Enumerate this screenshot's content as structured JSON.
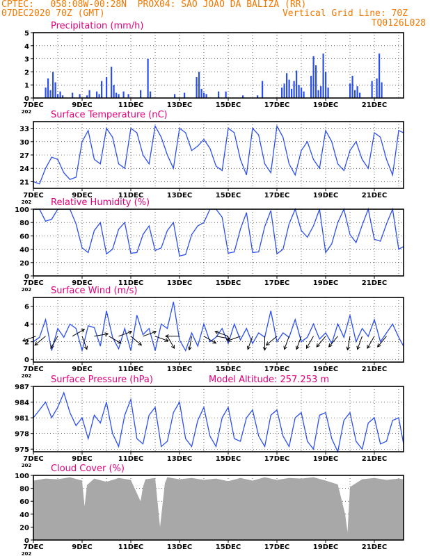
{
  "header": {
    "line1": "CPTEC:   058:08W-00:28N  PROX04: SAO JOAO DA BALIZA (RR)",
    "line2_left": "07DEC2020 70Z (GMT)",
    "line2_right": "Vertical Grid Line: 70Z",
    "line3_right": "TQ0126L028"
  },
  "colors": {
    "header": "#f07800",
    "title": "#e0007a",
    "line": "#2a4ef0",
    "cloud": "#a8a8a8"
  },
  "x_labels": [
    "7DEC",
    "9DEC",
    "11DEC",
    "13DEC",
    "15DEC",
    "17DEC",
    "19DEC",
    "21DEC"
  ],
  "x_label_fragment": "202",
  "chart_data": [
    {
      "type": "bar",
      "title": "Precipitation (mm/h)",
      "ylim": [
        0,
        5
      ],
      "yticks": [
        "0",
        "1",
        "2",
        "3",
        "4",
        "5"
      ],
      "x_range_days": [
        7,
        22.2
      ],
      "x": [
        7.5,
        7.6,
        7.7,
        7.8,
        7.9,
        8.0,
        8.1,
        8.2,
        8.6,
        8.9,
        9.2,
        9.3,
        9.6,
        9.7,
        9.8,
        10.0,
        10.2,
        10.3,
        10.4,
        10.5,
        10.7,
        10.9,
        11.4,
        11.7,
        11.8,
        12.8,
        13.2,
        13.7,
        13.8,
        13.9,
        14.0,
        14.1,
        14.6,
        14.9,
        15.6,
        16.2,
        16.4,
        17.2,
        17.3,
        17.4,
        17.5,
        17.6,
        17.7,
        17.8,
        17.9,
        18.0,
        18.1,
        18.4,
        18.5,
        18.6,
        18.7,
        18.8,
        18.9,
        19.0,
        19.1,
        20.0,
        20.1,
        20.2,
        20.3,
        20.4,
        20.9,
        21.1,
        21.2,
        21.3
      ],
      "values": [
        0.8,
        1.5,
        0.6,
        2.0,
        1.2,
        0.3,
        0.5,
        0.2,
        0.4,
        0.3,
        0.2,
        0.6,
        0.5,
        0.3,
        1.3,
        1.6,
        2.4,
        1.0,
        0.4,
        0.3,
        0.5,
        0.3,
        0.6,
        3.0,
        0.5,
        0.3,
        0.4,
        1.6,
        2.0,
        0.7,
        0.4,
        0.3,
        0.5,
        0.5,
        0.2,
        0.2,
        1.3,
        0.8,
        1.1,
        1.9,
        1.4,
        0.7,
        1.3,
        2.1,
        1.0,
        0.8,
        0.5,
        1.7,
        3.2,
        2.5,
        0.6,
        0.9,
        3.4,
        2.0,
        0.8,
        1.1,
        1.7,
        0.6,
        0.9,
        0.4,
        1.3,
        1.5,
        3.4,
        1.2
      ]
    },
    {
      "type": "line",
      "title": "Surface Temperature (nC)",
      "ylim": [
        19.5,
        34.5
      ],
      "yticks": [
        "21",
        "24",
        "27",
        "30",
        "33"
      ],
      "x_range_days": [
        7,
        22.2
      ],
      "x": [
        7.0,
        7.25,
        7.5,
        7.75,
        8.0,
        8.25,
        8.5,
        8.75,
        9.0,
        9.25,
        9.5,
        9.75,
        10.0,
        10.25,
        10.5,
        10.75,
        11.0,
        11.25,
        11.5,
        11.75,
        12.0,
        12.25,
        12.5,
        12.75,
        13.0,
        13.25,
        13.5,
        13.75,
        14.0,
        14.25,
        14.5,
        14.75,
        15.0,
        15.25,
        15.5,
        15.75,
        16.0,
        16.25,
        16.5,
        16.75,
        17.0,
        17.25,
        17.5,
        17.75,
        18.0,
        18.25,
        18.5,
        18.75,
        19.0,
        19.25,
        19.5,
        19.75,
        20.0,
        20.25,
        20.5,
        20.75,
        21.0,
        21.25,
        21.5,
        21.75,
        22.0,
        22.2
      ],
      "values": [
        21,
        20.5,
        24,
        26.5,
        26,
        23,
        21.5,
        22,
        30,
        32.5,
        26,
        25,
        33,
        31,
        25,
        24,
        33,
        32,
        27,
        25,
        33.5,
        31,
        27,
        24,
        33,
        32,
        28,
        29,
        30.5,
        28.5,
        24.5,
        23.5,
        33,
        32,
        26,
        22.5,
        33,
        31.5,
        25,
        23,
        33.5,
        31,
        25,
        22.5,
        28,
        30,
        26,
        24,
        32.5,
        30,
        25,
        23.5,
        28,
        30,
        26,
        24,
        32,
        31,
        26,
        22.5,
        32.5,
        32
      ]
    },
    {
      "type": "line",
      "title": "Relative Humidity (%)",
      "ylim": [
        0,
        100
      ],
      "yticks": [
        "0",
        "20",
        "40",
        "60",
        "80",
        "100"
      ],
      "x_range_days": [
        7,
        22.2
      ],
      "x": [
        7.0,
        7.25,
        7.5,
        7.75,
        8.0,
        8.25,
        8.5,
        8.75,
        9.0,
        9.25,
        9.5,
        9.75,
        10.0,
        10.25,
        10.5,
        10.75,
        11.0,
        11.25,
        11.5,
        11.75,
        12.0,
        12.25,
        12.5,
        12.75,
        13.0,
        13.25,
        13.5,
        13.75,
        14.0,
        14.25,
        14.5,
        14.75,
        15.0,
        15.25,
        15.5,
        15.75,
        16.0,
        16.25,
        16.5,
        16.75,
        17.0,
        17.25,
        17.5,
        17.75,
        18.0,
        18.25,
        18.5,
        18.75,
        19.0,
        19.25,
        19.5,
        19.75,
        20.0,
        20.25,
        20.5,
        20.75,
        21.0,
        21.25,
        21.5,
        21.75,
        22.0,
        22.2
      ],
      "values": [
        100,
        100,
        82,
        85,
        100,
        100,
        100,
        78,
        42,
        35,
        68,
        80,
        33,
        40,
        70,
        80,
        34,
        35,
        62,
        75,
        38,
        42,
        68,
        80,
        30,
        32,
        62,
        75,
        80,
        100,
        100,
        88,
        34,
        36,
        70,
        95,
        35,
        36,
        74,
        98,
        33,
        40,
        78,
        100,
        68,
        58,
        75,
        100,
        35,
        48,
        80,
        100,
        62,
        50,
        76,
        100,
        55,
        52,
        78,
        100,
        40,
        44
      ]
    },
    {
      "type": "line",
      "title": "Surface Wind (m/s)",
      "ylim": [
        -0.3,
        7
      ],
      "yticks": [
        "0",
        "2",
        "4",
        "6"
      ],
      "x_range_days": [
        7,
        22.2
      ],
      "x": [
        7.0,
        7.25,
        7.5,
        7.75,
        8.0,
        8.25,
        8.5,
        8.75,
        9.0,
        9.25,
        9.5,
        9.75,
        10.0,
        10.25,
        10.5,
        10.75,
        11.0,
        11.25,
        11.5,
        11.75,
        12.0,
        12.25,
        12.5,
        12.75,
        13.0,
        13.25,
        13.5,
        13.75,
        14.0,
        14.25,
        14.5,
        14.75,
        15.0,
        15.25,
        15.5,
        15.75,
        16.0,
        16.25,
        16.5,
        16.75,
        17.0,
        17.25,
        17.5,
        17.75,
        18.0,
        18.25,
        18.5,
        18.75,
        19.0,
        19.25,
        19.5,
        19.75,
        20.0,
        20.25,
        20.5,
        20.75,
        21.0,
        21.25,
        21.5,
        21.75,
        22.0,
        22.2
      ],
      "values": [
        2,
        2.5,
        4.5,
        1,
        3.5,
        2.5,
        4,
        3.5,
        1,
        3.8,
        3.6,
        1.5,
        5.5,
        2.5,
        1.2,
        3.5,
        1.0,
        5.0,
        2.8,
        3.5,
        1.0,
        4.0,
        3.5,
        6.5,
        2.2,
        1.0,
        3.0,
        1.5,
        4.0,
        2.0,
        2.5,
        3.5,
        1.8,
        4.0,
        2.2,
        3.5,
        1.8,
        3.0,
        2.5,
        5.5,
        2.0,
        3.0,
        2.5,
        4.5,
        2.0,
        2.5,
        4.0,
        2.3,
        3.0,
        1.8,
        4.0,
        2.5,
        5.0,
        2.0,
        3.5,
        2.6,
        4.5,
        2.0,
        3.0,
        4.0,
        2.5,
        1.5
      ],
      "arrow_days": [
        7.1,
        7.5,
        8.0,
        8.6,
        9.0,
        9.5,
        10.1,
        10.5,
        11.0,
        11.5,
        12.0,
        12.5,
        13.0,
        13.5,
        14.0,
        14.5,
        15.0,
        15.5,
        16.0,
        16.5,
        17.0,
        17.5,
        18.0,
        18.5,
        19.0,
        19.5,
        20.0,
        20.5,
        21.0,
        21.5
      ],
      "arrow_dirs_deg": [
        200,
        220,
        240,
        30,
        290,
        10,
        330,
        20,
        320,
        20,
        340,
        300,
        180,
        260,
        330,
        350,
        160,
        200,
        250,
        270,
        220,
        250,
        250,
        240,
        230,
        230,
        260,
        250,
        240,
        230
      ]
    },
    {
      "type": "line",
      "title": "Surface Pressure (hPa)",
      "annotation": "Model Altitude: 257.253 m",
      "ylim": [
        974.5,
        987
      ],
      "yticks": [
        "975",
        "978",
        "981",
        "984",
        "987"
      ],
      "x_range_days": [
        7,
        22.2
      ],
      "x": [
        7.0,
        7.25,
        7.5,
        7.75,
        8.0,
        8.25,
        8.5,
        8.75,
        9.0,
        9.25,
        9.5,
        9.75,
        10.0,
        10.25,
        10.5,
        10.75,
        11.0,
        11.25,
        11.5,
        11.75,
        12.0,
        12.25,
        12.5,
        12.75,
        13.0,
        13.25,
        13.5,
        13.75,
        14.0,
        14.25,
        14.5,
        14.75,
        15.0,
        15.25,
        15.5,
        15.75,
        16.0,
        16.25,
        16.5,
        16.75,
        17.0,
        17.25,
        17.5,
        17.75,
        18.0,
        18.25,
        18.5,
        18.75,
        19.0,
        19.25,
        19.5,
        19.75,
        20.0,
        20.25,
        20.5,
        20.75,
        21.0,
        21.25,
        21.5,
        21.75,
        22.0,
        22.2
      ],
      "values": [
        981,
        982.5,
        984,
        981,
        983,
        985.8,
        982,
        979.5,
        981,
        977,
        981.5,
        980,
        984,
        978,
        975.5,
        981.5,
        984.5,
        977,
        976,
        981.5,
        983,
        975.5,
        976.5,
        982,
        984,
        977,
        975.5,
        980.5,
        983,
        977.5,
        975.5,
        981,
        983,
        977,
        976.5,
        981,
        982.5,
        977.5,
        975.5,
        981.5,
        982.5,
        977.5,
        975.5,
        981,
        982,
        976.5,
        975,
        981.5,
        982,
        977,
        974.5,
        980.5,
        982,
        976.5,
        975,
        980,
        981,
        976,
        976.5,
        980.5,
        981,
        976
      ]
    },
    {
      "type": "area",
      "title": "Cloud Cover (%)",
      "ylim": [
        0,
        100
      ],
      "yticks": [
        "0",
        "20",
        "40",
        "60",
        "80",
        "100"
      ],
      "x_range_days": [
        7,
        22.2
      ],
      "x": [
        7.0,
        7.5,
        8.0,
        8.5,
        9.0,
        9.1,
        9.2,
        9.5,
        10.0,
        10.5,
        11.0,
        11.4,
        11.5,
        11.6,
        12.0,
        12.2,
        12.4,
        12.5,
        13.0,
        13.5,
        14.0,
        14.5,
        15.0,
        15.5,
        16.0,
        16.5,
        17.0,
        17.5,
        18.0,
        18.5,
        19.0,
        19.5,
        19.8,
        19.9,
        20.0,
        20.5,
        21.0,
        21.5,
        22.0,
        22.2
      ],
      "values": [
        92,
        95,
        94,
        97,
        92,
        52,
        85,
        95,
        90,
        96,
        93,
        60,
        82,
        94,
        96,
        20,
        88,
        97,
        94,
        96,
        93,
        95,
        91,
        96,
        92,
        97,
        93,
        96,
        95,
        97,
        92,
        86,
        40,
        12,
        82,
        94,
        96,
        93,
        95,
        94
      ]
    }
  ]
}
